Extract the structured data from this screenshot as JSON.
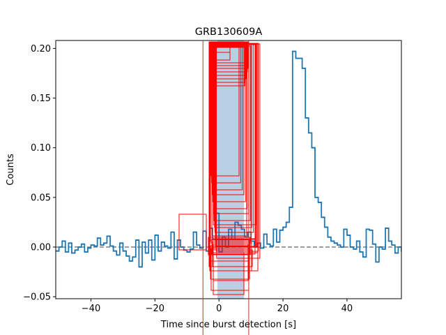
{
  "chart_data": {
    "type": "line",
    "drawstyle": "steps",
    "title": "GRB130609A",
    "xlabel": "Time since burst detection [s]",
    "ylabel": "Counts",
    "xlim": [
      -51,
      57
    ],
    "ylim": [
      -0.052,
      0.208
    ],
    "xticks": [
      -40,
      -20,
      0,
      20,
      40
    ],
    "xtick_labels": [
      "−40",
      "−20",
      "0",
      "20",
      "40"
    ],
    "yticks": [
      -0.05,
      0.0,
      0.05,
      0.1,
      0.15,
      0.2
    ],
    "ytick_labels": [
      "−0.05",
      "0.00",
      "0.05",
      "0.10",
      "0.15",
      "0.20"
    ],
    "grid": false,
    "line_color": "#1f77b4",
    "baseline": {
      "y": 0.0,
      "style": "dashed",
      "color": "#7f7f7f"
    },
    "shaded_region": {
      "x0": -0.5,
      "x1": 7.8,
      "color": "#b9d0e4"
    },
    "vertical_lines": {
      "x": [
        -5.0,
        9.3
      ],
      "color": "#d62728"
    },
    "detection_boxes_color": "#ff0000",
    "series": [
      {
        "x_start": -51,
        "bin_width": 1,
        "values": [
          -0.004,
          0.0,
          0.006,
          -0.005,
          0.004,
          -0.006,
          -0.003,
          0.0,
          0.003,
          -0.005,
          -0.001,
          0.002,
          0.001,
          0.009,
          0.002,
          0.004,
          0.011,
          0.001,
          -0.004,
          -0.008,
          0.004,
          -0.004,
          -0.009,
          -0.014,
          -0.01,
          0.007,
          -0.02,
          0.005,
          -0.006,
          0.007,
          -0.013,
          0.012,
          -0.004,
          0.005,
          0.001,
          -0.001,
          0.015,
          -0.012,
          0.007,
          0.0,
          -0.003,
          -0.005,
          -0.002,
          0.015,
          0.002,
          -0.001,
          0.016,
          -0.004,
          0.019,
          0.008,
          0.034,
          -0.005,
          0.01,
          0.0,
          0.018,
          0.008,
          0.025,
          0.022,
          0.018,
          0.01,
          0.015,
          0.006,
          0.0,
          0.004,
          -0.001,
          0.013,
          0.003,
          0.001,
          0.018,
          0.005,
          0.017,
          0.02,
          0.025,
          0.04,
          0.197,
          0.19,
          0.19,
          0.18,
          0.13,
          0.115,
          0.1,
          0.05,
          0.045,
          0.03,
          0.02,
          0.01,
          0.006,
          0.004,
          0.002,
          0.0,
          0.018,
          0.012,
          0.0,
          -0.002,
          0.006,
          -0.005,
          -0.01,
          0.018,
          0.017,
          0.003,
          -0.015,
          0.0,
          -0.002,
          0.019,
          0.006,
          0.002,
          -0.006,
          0.0,
          -0.004,
          0.012,
          -0.006
        ]
      }
    ]
  }
}
